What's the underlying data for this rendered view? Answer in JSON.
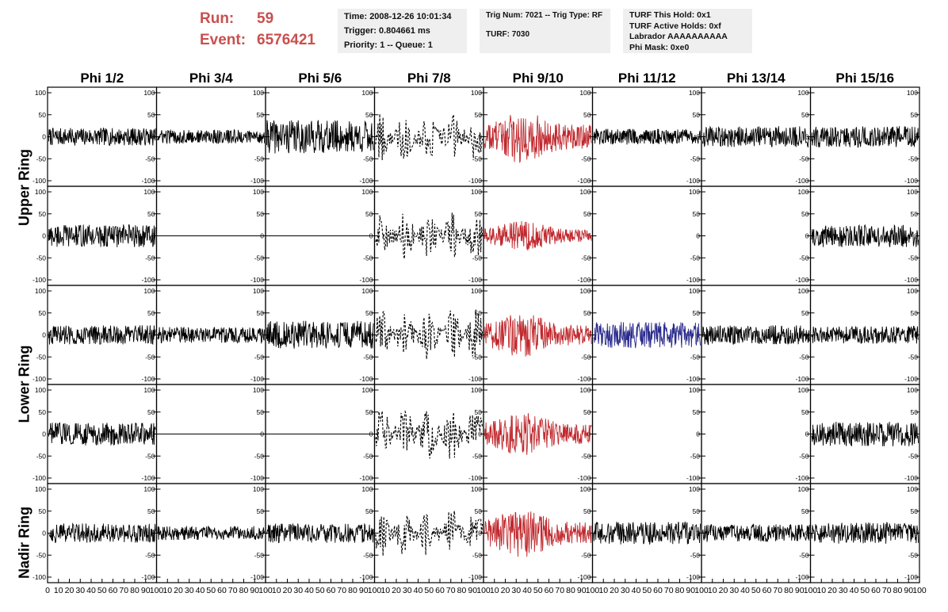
{
  "header": {
    "run_label": "Run:",
    "run_value": "59",
    "event_label": "Event:",
    "event_value": "6576421",
    "time": "Time: 2008-12-26 10:01:34",
    "trigger": "Trigger: 0.804661 ms",
    "priority": "Priority: 1 -- Queue: 1",
    "trig_num": "Trig Num: 7021 -- Trig Type: RF",
    "turf": "TURF: 7030",
    "turf_this_hold": "TURF This Hold: 0x1",
    "turf_active_holds": "TURF Active Holds: 0xf",
    "labrador": "Labrador AAAAAAAAAA",
    "phi_mask": "Phi Mask: 0xe0"
  },
  "row_labels": [
    "Upper Ring",
    "Lower Ring",
    "Nadir Ring"
  ],
  "colors": {
    "trace": "#000000",
    "red": "#c0282d",
    "blue": "#2a2a8c"
  },
  "chart_data": {
    "type": "line",
    "columns": [
      "Phi 1/2",
      "Phi 3/4",
      "Phi 5/6",
      "Phi 7/8",
      "Phi 9/10",
      "Phi 11/12",
      "Phi 13/14",
      "Phi 15/16"
    ],
    "ylim": [
      -100,
      100
    ],
    "yticks": [
      "100",
      "50",
      "0",
      "-50",
      "-100"
    ],
    "xlim": [
      0,
      100
    ],
    "xticks": [
      "0",
      "10",
      "20",
      "30",
      "40",
      "50",
      "60",
      "70",
      "80",
      "90",
      "100"
    ],
    "rows": [
      {
        "ring": "Upper Ring",
        "panels": [
          {
            "style": "solid",
            "color": "black",
            "amp": 20
          },
          {
            "style": "solid",
            "color": "black",
            "amp": 16
          },
          {
            "style": "solid",
            "color": "black",
            "amp": 38
          },
          {
            "style": "dashed",
            "color": "black",
            "amp": 55
          },
          {
            "style": "solid",
            "color": "red",
            "amp": 60
          },
          {
            "style": "solid",
            "color": "black",
            "amp": 18
          },
          {
            "style": "solid",
            "color": "black",
            "amp": 24
          },
          {
            "style": "solid",
            "color": "black",
            "amp": 24
          }
        ]
      },
      {
        "ring": "",
        "panels": [
          {
            "style": "solid",
            "color": "black",
            "amp": 26
          },
          {
            "style": "flat",
            "color": "black",
            "amp": 0
          },
          {
            "style": "flat",
            "color": "black",
            "amp": 0
          },
          {
            "style": "dashed",
            "color": "black",
            "amp": 55
          },
          {
            "style": "solid",
            "color": "red",
            "amp": 34
          },
          {
            "style": "none",
            "color": "black",
            "amp": 0
          },
          {
            "style": "none",
            "color": "black",
            "amp": 0
          },
          {
            "style": "solid",
            "color": "black",
            "amp": 26
          }
        ]
      },
      {
        "ring": "Lower Ring",
        "panels": [
          {
            "style": "solid",
            "color": "black",
            "amp": 22
          },
          {
            "style": "solid",
            "color": "black",
            "amp": 18
          },
          {
            "style": "solid",
            "color": "black",
            "amp": 32
          },
          {
            "style": "dashed",
            "color": "black",
            "amp": 58
          },
          {
            "style": "solid",
            "color": "red",
            "amp": 50
          },
          {
            "style": "solid",
            "color": "blue",
            "amp": 30
          },
          {
            "style": "solid",
            "color": "black",
            "amp": 22
          },
          {
            "style": "solid",
            "color": "black",
            "amp": 20
          }
        ]
      },
      {
        "ring": "",
        "panels": [
          {
            "style": "solid",
            "color": "black",
            "amp": 26
          },
          {
            "style": "flat",
            "color": "black",
            "amp": 0
          },
          {
            "style": "flat",
            "color": "black",
            "amp": 0
          },
          {
            "style": "dashed",
            "color": "black",
            "amp": 60
          },
          {
            "style": "solid",
            "color": "red",
            "amp": 50
          },
          {
            "style": "none",
            "color": "black",
            "amp": 0
          },
          {
            "style": "none",
            "color": "black",
            "amp": 0
          },
          {
            "style": "solid",
            "color": "black",
            "amp": 28
          }
        ]
      },
      {
        "ring": "Nadir Ring",
        "panels": [
          {
            "style": "solid",
            "color": "black",
            "amp": 22
          },
          {
            "style": "solid",
            "color": "black",
            "amp": 16
          },
          {
            "style": "solid",
            "color": "black",
            "amp": 22
          },
          {
            "style": "dashed",
            "color": "black",
            "amp": 55
          },
          {
            "style": "solid",
            "color": "red",
            "amp": 55
          },
          {
            "style": "solid",
            "color": "black",
            "amp": 26
          },
          {
            "style": "solid",
            "color": "black",
            "amp": 20
          },
          {
            "style": "solid",
            "color": "black",
            "amp": 24
          }
        ]
      }
    ]
  }
}
